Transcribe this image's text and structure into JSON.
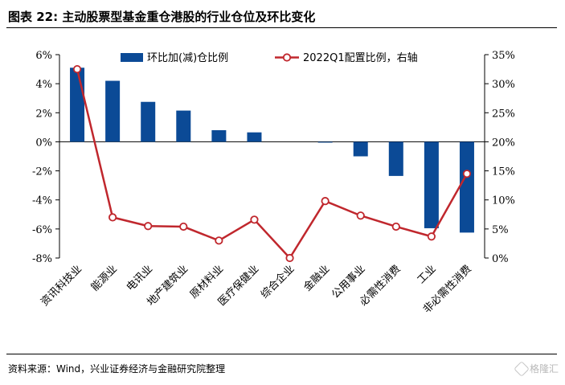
{
  "figure": {
    "title": "图表 22:  主动股票型基金重仓港股的行业仓位及环比变化",
    "source": "资料来源：Wind，兴业证券经济与金融研究院整理",
    "watermark": "格隆汇",
    "watermark_icon": "gelonghui-logo-icon"
  },
  "chart_data": {
    "type": "bar",
    "categories": [
      "资讯科技业",
      "能源业",
      "电讯业",
      "地产建筑业",
      "原材料业",
      "医疗保健业",
      "综合企业",
      "金融业",
      "公用事业",
      "必需性消费",
      "工业",
      "非必需性消费"
    ],
    "series": [
      {
        "name": "环比加(减)仓比例",
        "type": "bar",
        "axis": "left",
        "color": "#0b4a96",
        "values": [
          5.1,
          4.2,
          2.75,
          2.15,
          0.8,
          0.65,
          0.0,
          -0.05,
          -1.0,
          -2.35,
          -5.95,
          -6.25
        ]
      },
      {
        "name": "2022Q1配置比例，右轴",
        "type": "line",
        "axis": "right",
        "color": "#c0272d",
        "values": [
          32.5,
          7.0,
          5.5,
          5.4,
          3.0,
          6.6,
          0.0,
          9.8,
          7.3,
          5.4,
          3.7,
          14.5
        ]
      }
    ],
    "y_left": {
      "min": -8,
      "max": 6,
      "step": 2,
      "unit": "%"
    },
    "y_right": {
      "min": 0,
      "max": 35,
      "step": 5,
      "unit": "%"
    },
    "legend_position": "top",
    "grid": false
  }
}
